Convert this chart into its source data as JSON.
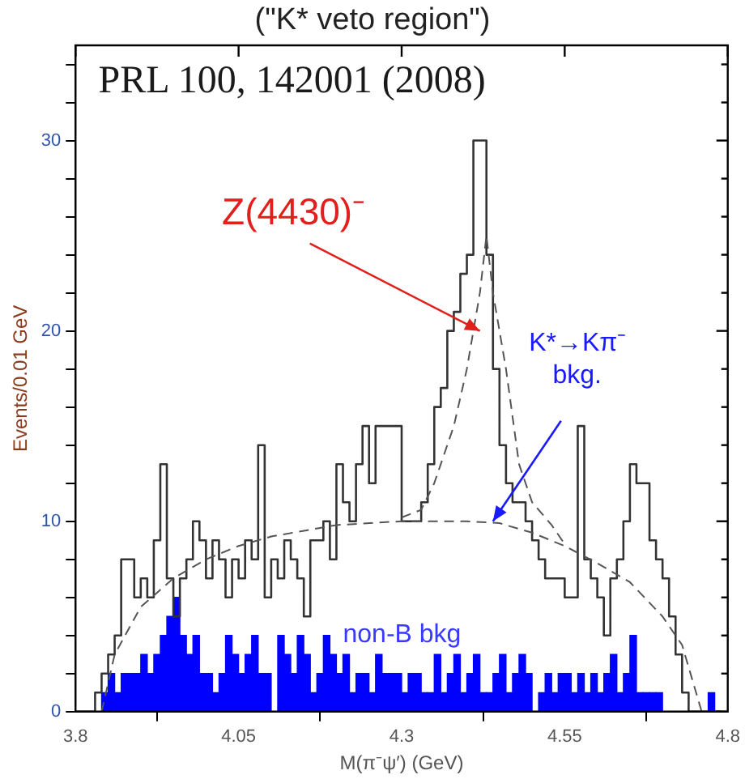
{
  "chart_data": {
    "type": "histogram",
    "title": "(\"K* veto region\")",
    "xlabel": "M(π⁻ψ′) (GeV)",
    "ylabel": "Events/0.01 GeV",
    "bins": [
      3.8,
      3.81,
      3.82,
      3.83,
      3.84,
      3.85,
      3.86,
      3.87,
      3.88,
      3.89,
      3.9,
      3.91,
      3.92,
      3.93,
      3.94,
      3.95,
      3.96,
      3.97,
      3.98,
      3.99,
      4.0,
      4.01,
      4.02,
      4.03,
      4.04,
      4.05,
      4.06,
      4.07,
      4.08,
      4.09,
      4.1,
      4.11,
      4.12,
      4.13,
      4.14,
      4.15,
      4.16,
      4.17,
      4.18,
      4.19,
      4.2,
      4.21,
      4.22,
      4.23,
      4.24,
      4.25,
      4.26,
      4.27,
      4.28,
      4.29,
      4.3,
      4.31,
      4.32,
      4.33,
      4.34,
      4.35,
      4.36,
      4.37,
      4.38,
      4.39,
      4.4,
      4.41,
      4.42,
      4.43,
      4.44,
      4.45,
      4.46,
      4.47,
      4.48,
      4.49,
      4.5,
      4.51,
      4.52,
      4.53,
      4.54,
      4.55,
      4.56,
      4.57,
      4.58,
      4.59,
      4.6,
      4.61,
      4.62,
      4.63,
      4.64,
      4.65,
      4.66,
      4.67,
      4.68,
      4.69,
      4.7,
      4.71,
      4.72,
      4.73,
      4.74,
      4.75,
      4.76,
      4.77,
      4.78,
      4.79,
      4.8
    ],
    "series": [
      {
        "type": "step",
        "color": "#333333",
        "x": [
          3.8,
          3.81,
          3.82,
          3.83,
          3.84,
          3.85,
          3.86,
          3.87,
          3.88,
          3.89,
          3.9,
          3.91,
          3.92,
          3.93,
          3.94,
          3.95,
          3.96,
          3.97,
          3.98,
          3.99,
          4.0,
          4.01,
          4.02,
          4.03,
          4.04,
          4.05,
          4.06,
          4.07,
          4.08,
          4.09,
          4.1,
          4.11,
          4.12,
          4.13,
          4.14,
          4.15,
          4.16,
          4.17,
          4.18,
          4.19,
          4.2,
          4.21,
          4.22,
          4.23,
          4.24,
          4.25,
          4.26,
          4.27,
          4.28,
          4.29,
          4.3,
          4.31,
          4.32,
          4.33,
          4.34,
          4.35,
          4.36,
          4.37,
          4.38,
          4.39,
          4.4,
          4.41,
          4.42,
          4.43,
          4.44,
          4.45,
          4.46,
          4.47,
          4.48,
          4.49,
          4.5,
          4.51,
          4.52,
          4.53,
          4.54,
          4.55,
          4.56,
          4.57,
          4.58,
          4.59,
          4.6,
          4.61,
          4.62,
          4.63,
          4.64,
          4.65,
          4.66,
          4.67,
          4.68,
          4.69,
          4.7,
          4.71,
          4.72,
          4.73,
          4.74,
          4.75,
          4.76,
          4.77,
          4.78,
          4.79
        ],
        "values": [
          0,
          0,
          0,
          0,
          1,
          2,
          3,
          4,
          8,
          8,
          6,
          7,
          6,
          9,
          13,
          7,
          5,
          7,
          8,
          10,
          9,
          7,
          9,
          8,
          6,
          8,
          7,
          9,
          8,
          14,
          6,
          8,
          7,
          9,
          8,
          7,
          5,
          9,
          9,
          10,
          8,
          13,
          11,
          10,
          13,
          15,
          12,
          15,
          15,
          15,
          15,
          10,
          10,
          10,
          11,
          13,
          16,
          17,
          20,
          21,
          23,
          24,
          30,
          30,
          24,
          18,
          14,
          12,
          11,
          11,
          10,
          9,
          8,
          7,
          7,
          7,
          6,
          6,
          15,
          8,
          7,
          6,
          4,
          7,
          8,
          10,
          13,
          12,
          12,
          9,
          8,
          7,
          5,
          3,
          1,
          0,
          0,
          0,
          0,
          0
        ]
      },
      {
        "color": "#0000ff",
        "values": [
          0,
          0,
          0,
          0,
          1,
          2,
          1,
          2,
          2,
          2,
          3,
          2,
          3,
          4,
          5,
          6,
          4,
          3,
          4,
          2,
          2,
          1,
          2,
          4,
          3,
          2,
          3,
          4,
          2,
          2,
          0,
          4,
          3,
          2,
          4,
          3,
          1,
          2,
          4,
          3,
          2,
          3,
          1,
          2,
          2,
          1,
          3,
          2,
          2,
          2,
          1,
          2,
          2,
          1,
          1,
          3,
          1,
          2,
          3,
          1,
          2,
          3,
          1,
          1,
          2,
          3,
          1,
          2,
          3,
          2,
          0,
          1,
          2,
          1,
          2,
          2,
          1,
          2,
          1,
          2,
          1,
          2,
          3,
          1,
          2,
          4,
          1,
          1,
          1,
          1,
          0,
          0,
          0,
          0,
          0,
          0,
          0,
          1,
          0,
          0
        ]
      },
      {
        "type": "line",
        "color": "#555555",
        "line_style": "dashed",
        "x": [
          3.84,
          3.86,
          3.9,
          3.95,
          4.0,
          4.05,
          4.1,
          4.2,
          4.3,
          4.4,
          4.45,
          4.5,
          4.55,
          4.6,
          4.65,
          4.7,
          4.73,
          4.76
        ],
        "values": [
          0,
          3,
          5.5,
          7,
          8,
          8.7,
          9.2,
          9.8,
          10,
          10,
          9.9,
          9.4,
          8.7,
          7.8,
          6.8,
          5,
          3.5,
          0
        ]
      },
      {
        "type": "line",
        "color": "#555555",
        "line_style": "dashed",
        "x": [
          4.3,
          4.33,
          4.35,
          4.38,
          4.4,
          4.42,
          4.43,
          4.44,
          4.46,
          4.48,
          4.5,
          4.53,
          4.55
        ],
        "values": [
          10.2,
          10.6,
          12,
          15,
          18,
          22,
          25,
          22,
          18,
          13,
          11,
          9.8,
          8.8
        ]
      }
    ],
    "xlim": [
      3.8,
      4.8
    ],
    "xticks": [
      3.8,
      4.05,
      4.3,
      4.55,
      4.8
    ],
    "ylim": [
      0,
      35
    ],
    "yticks": [
      0,
      {
        "value": 2,
        "label": null
      },
      {
        "value": 4,
        "label": null
      },
      {
        "value": 6,
        "label": null
      },
      {
        "value": 8,
        "label": null
      },
      10,
      {
        "value": 12,
        "label": null
      },
      {
        "value": 14,
        "label": null
      },
      {
        "value": 16,
        "label": null
      },
      {
        "value": 18,
        "label": null
      },
      20,
      {
        "value": 22,
        "label": null
      },
      {
        "value": 24,
        "label": null
      },
      {
        "value": 26,
        "label": null
      },
      {
        "value": 28,
        "label": null
      },
      30,
      {
        "value": 32,
        "label": null
      },
      {
        "value": 34,
        "label": null
      }
    ],
    "grid": false,
    "legend": false,
    "marker": "none",
    "annotations": [
      "PRL 100, 142001 (2008)",
      {
        "text": "Z(4430)⁻",
        "x": 4.42,
        "y": 20
      },
      {
        "text": "K*→Kπ⁻ bkg.",
        "x": 4.44,
        "y": 10
      },
      "non-B bkg"
    ]
  }
}
